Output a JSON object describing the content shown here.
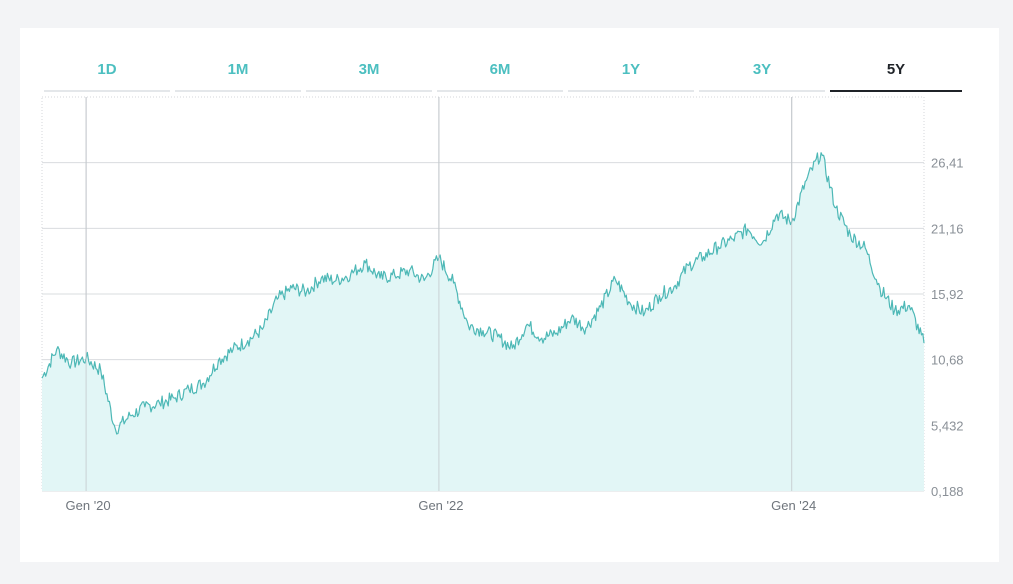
{
  "colors": {
    "accent": "#4cbfc0",
    "line": "#4db8b6",
    "area": "#e2f6f6",
    "active_tab": "#1f2328"
  },
  "tabs": [
    {
      "label": "1D",
      "active": false
    },
    {
      "label": "1M",
      "active": false
    },
    {
      "label": "3M",
      "active": false
    },
    {
      "label": "6M",
      "active": false
    },
    {
      "label": "1Y",
      "active": false
    },
    {
      "label": "3Y",
      "active": false
    },
    {
      "label": "5Y",
      "active": true
    }
  ],
  "chart_data": {
    "type": "area",
    "yticks": [
      "26,41",
      "21,16",
      "15,92",
      "10,68",
      "5,432",
      "0,188"
    ],
    "ytick_values": [
      26.41,
      21.16,
      15.92,
      10.68,
      5.432,
      0.188
    ],
    "ylim": [
      0.188,
      31.65
    ],
    "xticks": [
      {
        "label": "Gen '20",
        "date": "2020-01"
      },
      {
        "label": "Gen '22",
        "date": "2022-01"
      },
      {
        "label": "Gen '24",
        "date": "2024-01"
      }
    ],
    "grid": true,
    "series": [
      {
        "x": [
          "2019-10",
          "2019-11",
          "2019-12",
          "2020-01",
          "2020-02",
          "2020-03",
          "2020-04",
          "2020-05",
          "2020-06",
          "2020-07",
          "2020-08",
          "2020-09",
          "2020-10",
          "2020-11",
          "2020-12",
          "2021-01",
          "2021-02",
          "2021-03",
          "2021-04",
          "2021-05",
          "2021-06",
          "2021-07",
          "2021-08",
          "2021-09",
          "2021-10",
          "2021-11",
          "2021-12",
          "2022-01",
          "2022-02",
          "2022-03",
          "2022-04",
          "2022-05",
          "2022-06",
          "2022-07",
          "2022-08",
          "2022-09",
          "2022-10",
          "2022-11",
          "2022-12",
          "2023-01",
          "2023-02",
          "2023-03",
          "2023-04",
          "2023-05",
          "2023-06",
          "2023-07",
          "2023-08",
          "2023-09",
          "2023-10",
          "2023-11",
          "2023-12",
          "2024-01",
          "2024-02",
          "2024-03",
          "2024-04",
          "2024-05",
          "2024-06",
          "2024-07",
          "2024-08",
          "2024-09",
          "2024-10"
        ],
        "values": [
          9.2,
          11.5,
          10.4,
          10.8,
          9.8,
          5.1,
          6.2,
          6.9,
          7.2,
          7.6,
          8.3,
          8.8,
          10.6,
          11.5,
          12.2,
          13.1,
          15.5,
          16.4,
          16.1,
          17.2,
          17.0,
          17.5,
          18.4,
          17.2,
          17.4,
          17.8,
          17.0,
          18.8,
          16.8,
          13.4,
          13.0,
          12.5,
          11.6,
          13.5,
          12.4,
          12.8,
          14.0,
          13.2,
          14.9,
          17.1,
          15.2,
          14.4,
          15.8,
          16.5,
          18.2,
          18.9,
          19.7,
          20.3,
          21.1,
          20.0,
          22.3,
          21.7,
          25.0,
          27.2,
          22.8,
          20.6,
          19.6,
          16.4,
          14.6,
          15.0,
          12.0
        ]
      }
    ]
  }
}
